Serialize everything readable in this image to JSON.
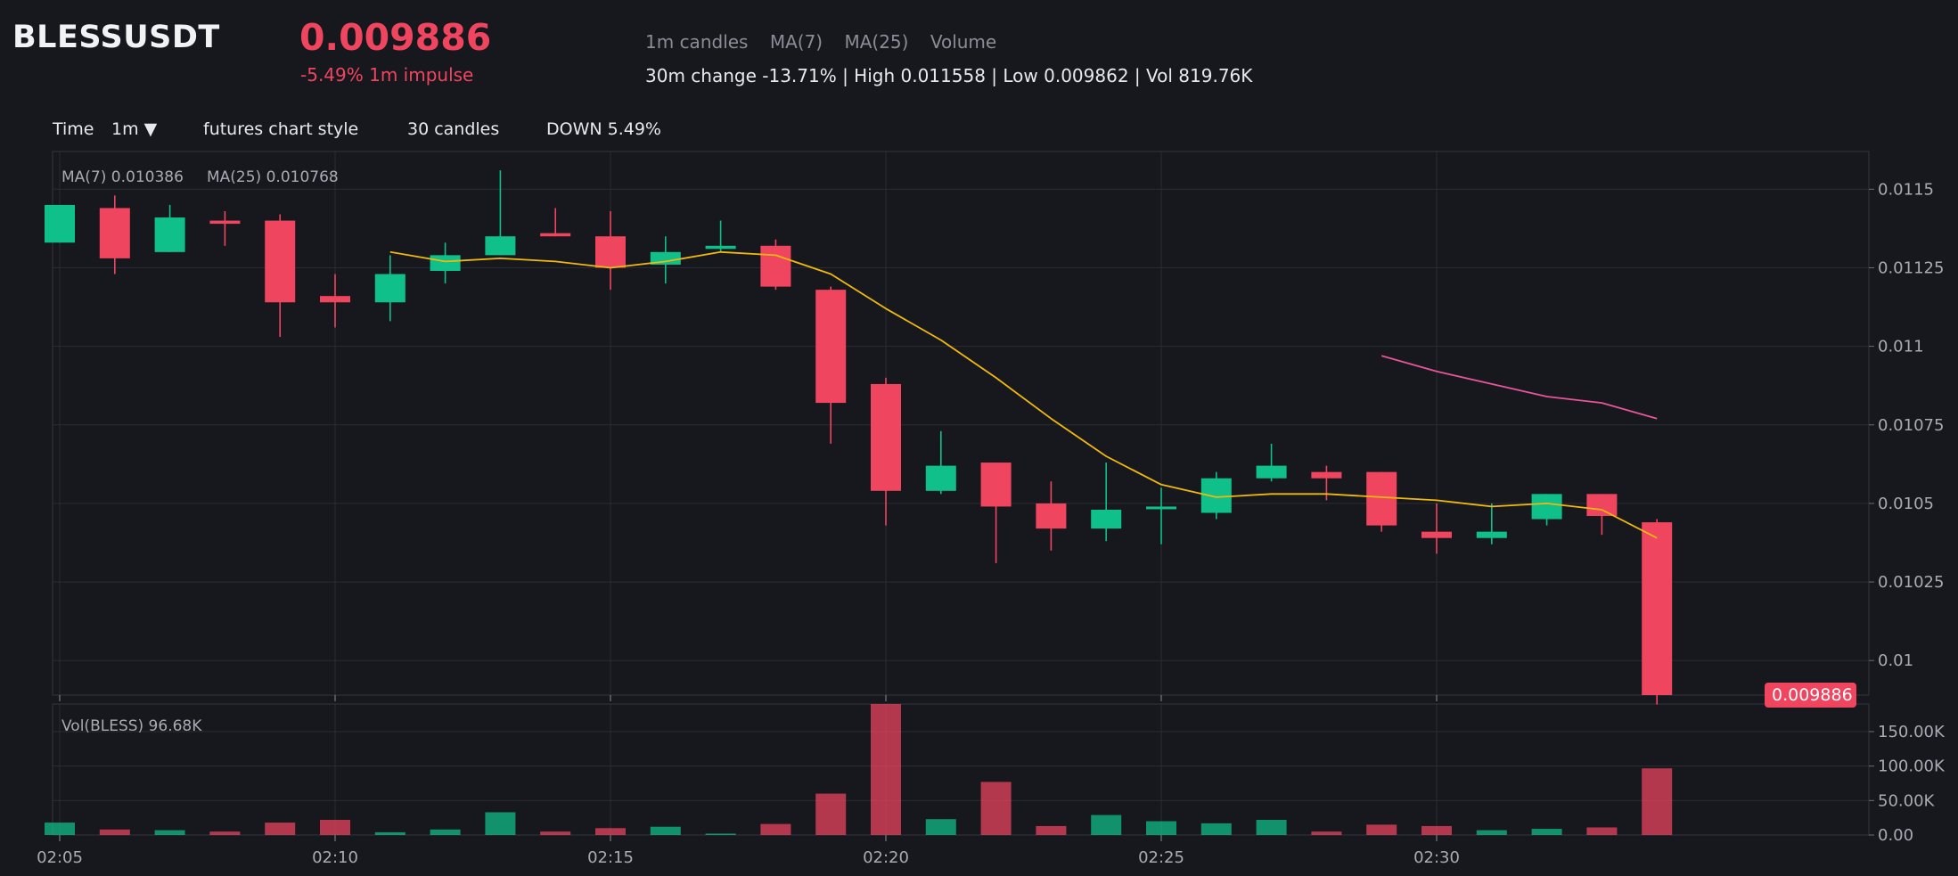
{
  "header": {
    "symbol": "BLESSUSDT",
    "price": "0.009886",
    "impulse": "-5.49% 1m impulse",
    "legend": [
      "1m candles",
      "MA(7)",
      "MA(25)",
      "Volume"
    ],
    "stats": "30m change -13.71% | High 0.011558 | Low 0.009862 | Vol 819.76K"
  },
  "toolbar": {
    "time_label": "Time",
    "interval": "1m ▼",
    "style": "futures chart style",
    "count": "30 candles",
    "direction": "DOWN 5.49%"
  },
  "colors": {
    "up": "#0fc08a",
    "down": "#f0455f",
    "ma7": "#f0b90b",
    "ma25": "#e8559a",
    "background": "#17181e",
    "grid": "#2a2c33"
  },
  "chart_data": {
    "type": "candlestick",
    "price_labels": {
      "ma7": "MA(7) 0.010386",
      "ma25": "MA(25) 0.010768",
      "volume": "Vol(BLESS) 96.68K",
      "last_price_tag": "0.009886"
    },
    "price_axis": {
      "min": 0.00989,
      "max": 0.01162,
      "ticks": [
        0.01,
        0.01025,
        0.0105,
        0.01075,
        0.011,
        0.01125,
        0.0115
      ],
      "tick_labels": [
        "0.01",
        "0.01025",
        "0.0105",
        "0.01075",
        "0.011",
        "0.01125",
        "0.0115"
      ]
    },
    "volume_axis": {
      "min": 0,
      "max": 190000,
      "ticks": [
        0,
        50000,
        100000,
        150000
      ],
      "tick_labels": [
        "0.00",
        "50.00K",
        "100.00K",
        "150.00K"
      ]
    },
    "time_axis": {
      "labels": [
        "02:05",
        "02:10",
        "02:15",
        "02:20",
        "02:25",
        "02:30"
      ],
      "label_index": [
        0,
        5,
        10,
        15,
        20,
        25
      ],
      "slots": 33
    },
    "candles": [
      {
        "time": "02:05",
        "open": 0.01133,
        "high": 0.01145,
        "low": 0.01133,
        "close": 0.01145,
        "volume": 18000
      },
      {
        "time": "02:06",
        "open": 0.01144,
        "high": 0.01148,
        "low": 0.01123,
        "close": 0.01128,
        "volume": 8000
      },
      {
        "time": "02:07",
        "open": 0.0113,
        "high": 0.01145,
        "low": 0.0113,
        "close": 0.01141,
        "volume": 7000
      },
      {
        "time": "02:08",
        "open": 0.0114,
        "high": 0.01143,
        "low": 0.01132,
        "close": 0.01139,
        "volume": 5000
      },
      {
        "time": "02:09",
        "open": 0.0114,
        "high": 0.01142,
        "low": 0.01103,
        "close": 0.01114,
        "volume": 18000
      },
      {
        "time": "02:10",
        "open": 0.01116,
        "high": 0.01123,
        "low": 0.01106,
        "close": 0.01114,
        "volume": 22000
      },
      {
        "time": "02:11",
        "open": 0.01114,
        "high": 0.01129,
        "low": 0.01108,
        "close": 0.01123,
        "volume": 4000
      },
      {
        "time": "02:12",
        "open": 0.01124,
        "high": 0.01133,
        "low": 0.0112,
        "close": 0.01129,
        "volume": 8000
      },
      {
        "time": "02:13",
        "open": 0.01129,
        "high": 0.01156,
        "low": 0.01129,
        "close": 0.01135,
        "volume": 33000
      },
      {
        "time": "02:14",
        "open": 0.01136,
        "high": 0.01144,
        "low": 0.01135,
        "close": 0.01135,
        "volume": 5000
      },
      {
        "time": "02:15",
        "open": 0.01135,
        "high": 0.01143,
        "low": 0.01118,
        "close": 0.01125,
        "volume": 10000
      },
      {
        "time": "02:16",
        "open": 0.01126,
        "high": 0.01135,
        "low": 0.0112,
        "close": 0.0113,
        "volume": 12000
      },
      {
        "time": "02:17",
        "open": 0.01131,
        "high": 0.0114,
        "low": 0.0113,
        "close": 0.01132,
        "volume": 2000
      },
      {
        "time": "02:18",
        "open": 0.01132,
        "high": 0.01134,
        "low": 0.01118,
        "close": 0.01119,
        "volume": 16000
      },
      {
        "time": "02:19",
        "open": 0.01118,
        "high": 0.01119,
        "low": 0.01069,
        "close": 0.01082,
        "volume": 60000
      },
      {
        "time": "02:20",
        "open": 0.01088,
        "high": 0.0109,
        "low": 0.01043,
        "close": 0.01054,
        "volume": 190000
      },
      {
        "time": "02:21",
        "open": 0.01054,
        "high": 0.01073,
        "low": 0.01053,
        "close": 0.01062,
        "volume": 23000
      },
      {
        "time": "02:22",
        "open": 0.01063,
        "high": 0.01063,
        "low": 0.01031,
        "close": 0.01049,
        "volume": 77000
      },
      {
        "time": "02:23",
        "open": 0.0105,
        "high": 0.01057,
        "low": 0.01035,
        "close": 0.01042,
        "volume": 13000
      },
      {
        "time": "02:24",
        "open": 0.01042,
        "high": 0.01063,
        "low": 0.01038,
        "close": 0.01048,
        "volume": 29000
      },
      {
        "time": "02:25",
        "open": 0.01049,
        "high": 0.01055,
        "low": 0.01037,
        "close": 0.01049,
        "volume": 20000
      },
      {
        "time": "02:26",
        "open": 0.01047,
        "high": 0.0106,
        "low": 0.01045,
        "close": 0.01058,
        "volume": 17000
      },
      {
        "time": "02:27",
        "open": 0.01058,
        "high": 0.01069,
        "low": 0.01057,
        "close": 0.01062,
        "volume": 22000
      },
      {
        "time": "02:28",
        "open": 0.0106,
        "high": 0.01062,
        "low": 0.01051,
        "close": 0.01058,
        "volume": 5000
      },
      {
        "time": "02:29",
        "open": 0.0106,
        "high": 0.0106,
        "low": 0.01041,
        "close": 0.01043,
        "volume": 15000
      },
      {
        "time": "02:30",
        "open": 0.01041,
        "high": 0.0105,
        "low": 0.01034,
        "close": 0.01039,
        "volume": 13000
      },
      {
        "time": "02:31",
        "open": 0.01039,
        "high": 0.0105,
        "low": 0.01037,
        "close": 0.01041,
        "volume": 7000
      },
      {
        "time": "02:32",
        "open": 0.01045,
        "high": 0.01053,
        "low": 0.01043,
        "close": 0.01053,
        "volume": 9000
      },
      {
        "time": "02:33",
        "open": 0.01053,
        "high": 0.01053,
        "low": 0.0104,
        "close": 0.01046,
        "volume": 11000
      },
      {
        "time": "02:34",
        "open": 0.01044,
        "high": 0.01045,
        "low": 0.00986,
        "close": 0.00989,
        "volume": 96680
      }
    ],
    "ma7": [
      null,
      null,
      null,
      null,
      null,
      null,
      0.0113,
      0.01127,
      0.01128,
      0.01127,
      0.01125,
      0.01127,
      0.0113,
      0.01129,
      0.01123,
      0.01112,
      0.01102,
      0.0109,
      0.01077,
      0.01065,
      0.01056,
      0.01052,
      0.01053,
      0.01053,
      0.01052,
      0.01051,
      0.01049,
      0.0105,
      0.01048,
      0.01039
    ],
    "ma25": [
      null,
      null,
      null,
      null,
      null,
      null,
      null,
      null,
      null,
      null,
      null,
      null,
      null,
      null,
      null,
      null,
      null,
      null,
      null,
      null,
      null,
      null,
      null,
      null,
      0.01097,
      0.01092,
      0.01088,
      0.01084,
      0.01082,
      0.01077
    ]
  }
}
